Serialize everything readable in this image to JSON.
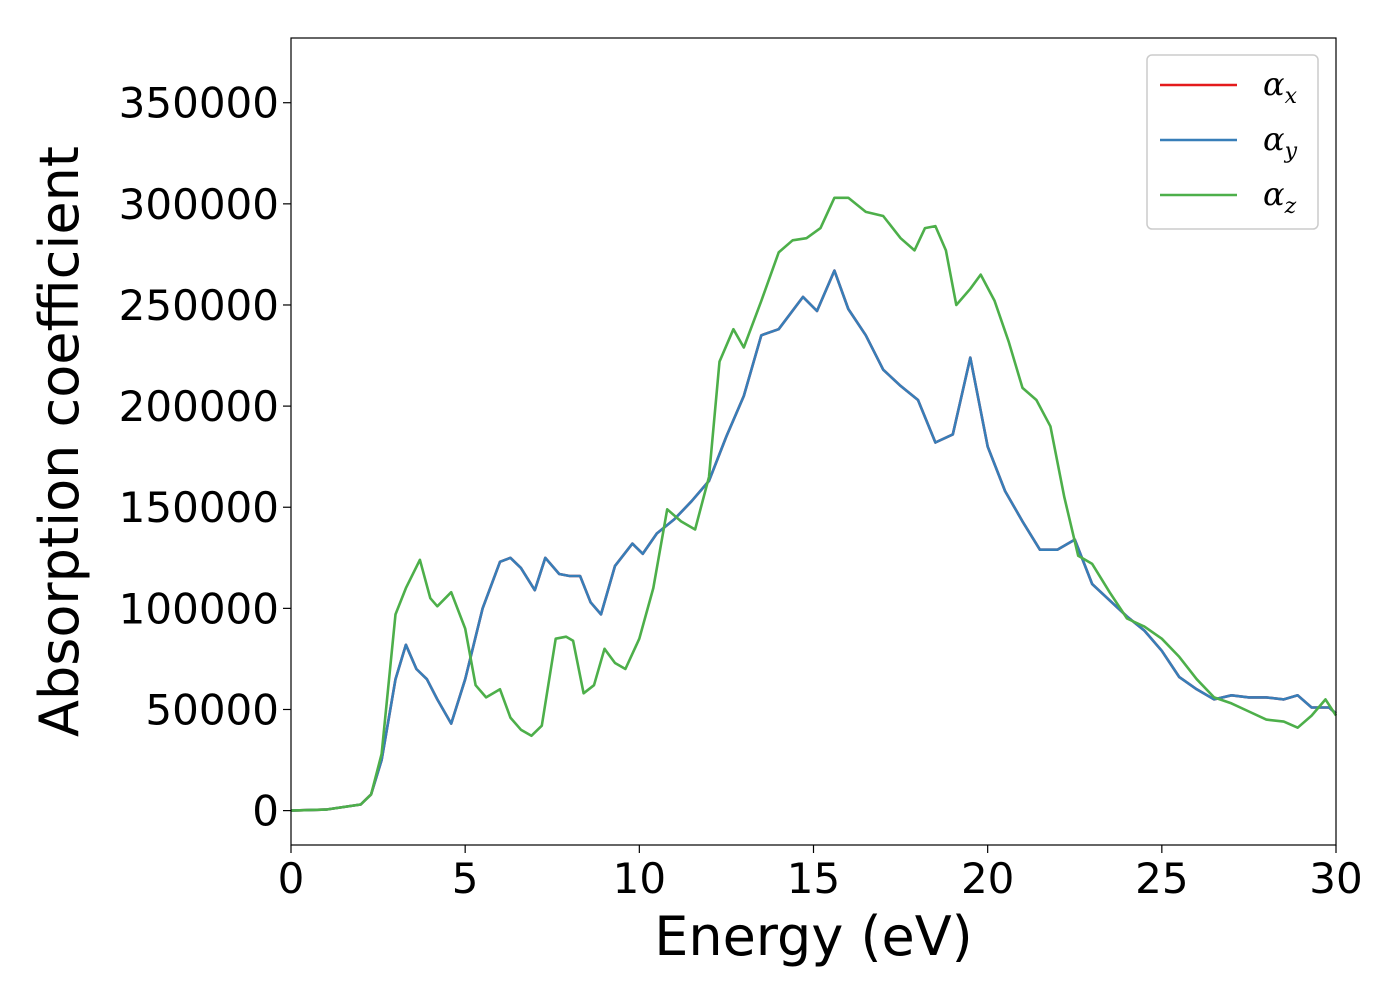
{
  "chart_data": {
    "type": "line",
    "xlabel": "Energy (eV)",
    "ylabel": "Absorption coefficient",
    "xlim": [
      0,
      30
    ],
    "ylim": [
      -17000,
      382000
    ],
    "x_ticks": [
      0,
      5,
      10,
      15,
      20,
      25,
      30
    ],
    "y_ticks": [
      0,
      50000,
      100000,
      150000,
      200000,
      250000,
      300000,
      350000
    ],
    "grid": false,
    "legend_position": "top-right",
    "series": [
      {
        "name": "αx",
        "legend_base": "α",
        "legend_sub": "x",
        "color": "#e41a1c",
        "x": [
          0,
          1,
          2,
          2.3,
          2.6,
          3.0,
          3.3,
          3.6,
          3.9,
          4.2,
          4.6,
          5.0,
          5.5,
          6.0,
          6.3,
          6.6,
          7.0,
          7.3,
          7.7,
          8.0,
          8.3,
          8.6,
          8.9,
          9.3,
          9.8,
          10.1,
          10.5,
          11.0,
          11.5,
          12.0,
          12.5,
          13.0,
          13.5,
          14.0,
          14.7,
          15.1,
          15.6,
          16.0,
          16.5,
          17.0,
          17.5,
          18.0,
          18.5,
          19.0,
          19.5,
          20.0,
          20.5,
          21.0,
          21.5,
          22.0,
          22.5,
          23.0,
          23.5,
          24.0,
          24.5,
          25.0,
          25.5,
          26.0,
          26.5,
          27.0,
          27.5,
          28.0,
          28.5,
          28.9,
          29.3,
          29.8,
          30.0
        ],
        "y": [
          0,
          500,
          3000,
          8000,
          25000,
          65000,
          82000,
          70000,
          65000,
          55000,
          43000,
          65000,
          100000,
          123000,
          125000,
          120000,
          109000,
          125000,
          117000,
          116000,
          116000,
          103000,
          97000,
          121000,
          132000,
          127000,
          137000,
          144000,
          153000,
          163000,
          185000,
          205000,
          235000,
          238000,
          254000,
          247000,
          267000,
          248000,
          235000,
          218000,
          210000,
          203000,
          182000,
          186000,
          224000,
          180000,
          158000,
          143000,
          129000,
          129000,
          134000,
          112000,
          104000,
          96000,
          89000,
          79000,
          66000,
          60000,
          55000,
          57000,
          56000,
          56000,
          55000,
          57000,
          51000,
          51000,
          48000
        ]
      },
      {
        "name": "αy",
        "legend_base": "α",
        "legend_sub": "y",
        "color": "#377eb8",
        "x": [
          0,
          1,
          2,
          2.3,
          2.6,
          3.0,
          3.3,
          3.6,
          3.9,
          4.2,
          4.6,
          5.0,
          5.5,
          6.0,
          6.3,
          6.6,
          7.0,
          7.3,
          7.7,
          8.0,
          8.3,
          8.6,
          8.9,
          9.3,
          9.8,
          10.1,
          10.5,
          11.0,
          11.5,
          12.0,
          12.5,
          13.0,
          13.5,
          14.0,
          14.7,
          15.1,
          15.6,
          16.0,
          16.5,
          17.0,
          17.5,
          18.0,
          18.5,
          19.0,
          19.5,
          20.0,
          20.5,
          21.0,
          21.5,
          22.0,
          22.5,
          23.0,
          23.5,
          24.0,
          24.5,
          25.0,
          25.5,
          26.0,
          26.5,
          27.0,
          27.5,
          28.0,
          28.5,
          28.9,
          29.3,
          29.8,
          30.0
        ],
        "y": [
          0,
          500,
          3000,
          8000,
          25000,
          65000,
          82000,
          70000,
          65000,
          55000,
          43000,
          65000,
          100000,
          123000,
          125000,
          120000,
          109000,
          125000,
          117000,
          116000,
          116000,
          103000,
          97000,
          121000,
          132000,
          127000,
          137000,
          144000,
          153000,
          163000,
          185000,
          205000,
          235000,
          238000,
          254000,
          247000,
          267000,
          248000,
          235000,
          218000,
          210000,
          203000,
          182000,
          186000,
          224000,
          180000,
          158000,
          143000,
          129000,
          129000,
          134000,
          112000,
          104000,
          96000,
          89000,
          79000,
          66000,
          60000,
          55000,
          57000,
          56000,
          56000,
          55000,
          57000,
          51000,
          51000,
          48000
        ]
      },
      {
        "name": "αz",
        "legend_base": "α",
        "legend_sub": "z",
        "color": "#4daf4a",
        "x": [
          0,
          1,
          2,
          2.3,
          2.6,
          3.0,
          3.3,
          3.7,
          4.0,
          4.2,
          4.6,
          5.0,
          5.3,
          5.6,
          6.0,
          6.3,
          6.6,
          6.9,
          7.2,
          7.6,
          7.9,
          8.1,
          8.4,
          8.7,
          9.0,
          9.3,
          9.6,
          10.0,
          10.4,
          10.8,
          11.2,
          11.6,
          12.0,
          12.3,
          12.7,
          13.0,
          13.5,
          14.0,
          14.4,
          14.8,
          15.2,
          15.6,
          16.0,
          16.5,
          17.0,
          17.5,
          17.9,
          18.2,
          18.5,
          18.8,
          19.1,
          19.5,
          19.8,
          20.2,
          20.6,
          21.0,
          21.4,
          21.8,
          22.2,
          22.6,
          23.0,
          23.5,
          24.0,
          24.5,
          25.0,
          25.5,
          26.0,
          26.5,
          27.0,
          27.5,
          28.0,
          28.5,
          28.9,
          29.3,
          29.7,
          30.0
        ],
        "y": [
          0,
          500,
          3000,
          8000,
          28000,
          97000,
          110000,
          124000,
          105000,
          101000,
          108000,
          90000,
          62000,
          56000,
          60000,
          46000,
          40000,
          37000,
          42000,
          85000,
          86000,
          84000,
          58000,
          62000,
          80000,
          73000,
          70000,
          85000,
          110000,
          149000,
          143000,
          139000,
          165000,
          222000,
          238000,
          229000,
          252000,
          276000,
          282000,
          283000,
          288000,
          303000,
          303000,
          296000,
          294000,
          283000,
          277000,
          288000,
          289000,
          277000,
          250000,
          258000,
          265000,
          252000,
          232000,
          209000,
          203000,
          190000,
          155000,
          126000,
          122000,
          108000,
          95000,
          91000,
          85000,
          76000,
          65000,
          56000,
          53000,
          49000,
          45000,
          44000,
          41000,
          47000,
          55000,
          47000
        ]
      }
    ]
  }
}
